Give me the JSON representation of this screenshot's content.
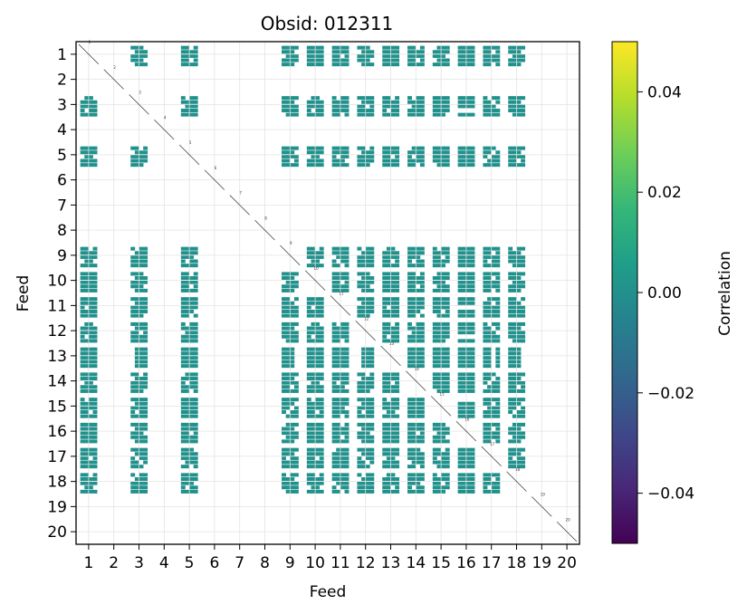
{
  "chart_data": {
    "type": "heatmap",
    "title": "Obsid: 012311",
    "xlabel": "Feed",
    "ylabel": "Feed",
    "feeds": [
      "1",
      "2",
      "3",
      "4",
      "5",
      "6",
      "7",
      "8",
      "9",
      "10",
      "11",
      "12",
      "13",
      "14",
      "15",
      "16",
      "17",
      "18",
      "19",
      "20"
    ],
    "groups": [
      [
        1,
        3,
        5
      ],
      [
        9,
        10,
        11,
        12,
        13,
        14,
        15
      ],
      [
        16,
        17,
        18
      ]
    ],
    "diagonal_labels": [
      "1",
      "2",
      "3",
      "4",
      "5",
      "6",
      "7",
      "8",
      "9",
      "10",
      "11",
      "12",
      "13",
      "14",
      "15",
      "16",
      "17",
      "18",
      "19",
      "20"
    ],
    "fill_value": 0.0,
    "fill_color": "#21918c",
    "colorbar": {
      "label": "Correlation",
      "vmin": -0.05,
      "vmax": 0.05,
      "ticks": [
        0.04,
        0.02,
        0.0,
        -0.02,
        -0.04
      ],
      "tick_labels": [
        "0.04",
        "0.02",
        "0.00",
        "−0.02",
        "−0.04"
      ],
      "colormap": [
        "#440154",
        "#482878",
        "#3e4989",
        "#31688e",
        "#26828e",
        "#1f9e89",
        "#35b779",
        "#6ece58",
        "#b5de2b",
        "#fde725"
      ]
    }
  }
}
